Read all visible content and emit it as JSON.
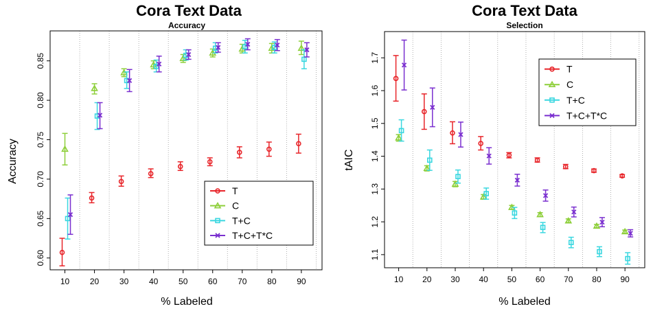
{
  "chart_data": [
    {
      "type": "scatter",
      "title": "Cora Text Data",
      "subtitle": "Accuracy",
      "xlabel": "% Labeled",
      "ylabel": "Accuracy",
      "x_categories": [
        "10",
        "20",
        "30",
        "40",
        "50",
        "60",
        "70",
        "80",
        "90"
      ],
      "xlim": [
        5,
        97
      ],
      "ylim": [
        0.585,
        0.888
      ],
      "y_ticks": [
        "0.60",
        "0.65",
        "0.70",
        "0.75",
        "0.80",
        "0.85"
      ],
      "grid": "vertical dotted",
      "legend_position": "bottom-right",
      "series": [
        {
          "name": "T",
          "color": "#e8252a",
          "marker": "circle",
          "x": [
            10,
            20,
            30,
            40,
            50,
            60,
            70,
            80,
            90
          ],
          "y": [
            0.607,
            0.676,
            0.697,
            0.707,
            0.716,
            0.722,
            0.734,
            0.738,
            0.745
          ],
          "y_low": [
            0.59,
            0.67,
            0.691,
            0.702,
            0.711,
            0.717,
            0.727,
            0.729,
            0.733
          ],
          "y_high": [
            0.625,
            0.683,
            0.704,
            0.713,
            0.722,
            0.727,
            0.741,
            0.747,
            0.757
          ]
        },
        {
          "name": "C",
          "color": "#8ecf3a",
          "marker": "triangle",
          "x": [
            10,
            20,
            30,
            40,
            50,
            60,
            70,
            80,
            90
          ],
          "y": [
            0.738,
            0.815,
            0.835,
            0.845,
            0.853,
            0.86,
            0.865,
            0.866,
            0.866
          ],
          "y_low": [
            0.718,
            0.808,
            0.83,
            0.84,
            0.848,
            0.855,
            0.86,
            0.86,
            0.858
          ],
          "y_high": [
            0.758,
            0.821,
            0.84,
            0.85,
            0.858,
            0.865,
            0.871,
            0.872,
            0.875
          ]
        },
        {
          "name": "T+C",
          "color": "#3ad7e0",
          "marker": "square",
          "x": [
            10,
            20,
            30,
            40,
            50,
            60,
            70,
            80,
            90
          ],
          "y": [
            0.65,
            0.78,
            0.825,
            0.843,
            0.857,
            0.866,
            0.868,
            0.867,
            0.852
          ],
          "y_low": [
            0.624,
            0.763,
            0.815,
            0.836,
            0.851,
            0.86,
            0.86,
            0.86,
            0.84
          ],
          "y_high": [
            0.676,
            0.797,
            0.836,
            0.851,
            0.864,
            0.873,
            0.876,
            0.874,
            0.864
          ]
        },
        {
          "name": "T+C+T*C",
          "color": "#7a2fcf",
          "marker": "x",
          "x": [
            10,
            20,
            30,
            40,
            50,
            60,
            70,
            80,
            90
          ],
          "y": [
            0.655,
            0.781,
            0.825,
            0.846,
            0.858,
            0.867,
            0.871,
            0.87,
            0.864
          ],
          "y_low": [
            0.63,
            0.764,
            0.811,
            0.836,
            0.852,
            0.861,
            0.864,
            0.863,
            0.855
          ],
          "y_high": [
            0.68,
            0.797,
            0.839,
            0.856,
            0.864,
            0.873,
            0.878,
            0.877,
            0.873
          ]
        }
      ]
    },
    {
      "type": "scatter",
      "title": "Cora Text Data",
      "subtitle": "Selection",
      "xlabel": "% Labeled",
      "ylabel": "tAIC",
      "x_categories": [
        "10",
        "20",
        "30",
        "40",
        "50",
        "60",
        "70",
        "80",
        "90"
      ],
      "xlim": [
        5,
        97
      ],
      "ylim": [
        1.06,
        1.78
      ],
      "y_ticks": [
        "1.1",
        "1.2",
        "1.3",
        "1.4",
        "1.5",
        "1.6",
        "1.7"
      ],
      "grid": "vertical dotted",
      "legend_position": "top-right",
      "series": [
        {
          "name": "T",
          "color": "#e8252a",
          "marker": "circle",
          "x": [
            10,
            20,
            30,
            40,
            50,
            60,
            70,
            80,
            90
          ],
          "y": [
            1.637,
            1.536,
            1.471,
            1.439,
            1.403,
            1.388,
            1.368,
            1.356,
            1.34
          ],
          "y_low": [
            1.568,
            1.482,
            1.438,
            1.419,
            1.395,
            1.382,
            1.362,
            1.351,
            1.336
          ],
          "y_high": [
            1.707,
            1.59,
            1.505,
            1.46,
            1.411,
            1.395,
            1.375,
            1.361,
            1.344
          ]
        },
        {
          "name": "C",
          "color": "#8ecf3a",
          "marker": "triangle",
          "x": [
            10,
            20,
            30,
            40,
            50,
            60,
            70,
            80,
            90
          ],
          "y": [
            1.456,
            1.363,
            1.315,
            1.276,
            1.244,
            1.222,
            1.203,
            1.187,
            1.17
          ],
          "y_low": [
            1.446,
            1.355,
            1.307,
            1.269,
            1.238,
            1.216,
            1.198,
            1.182,
            1.165
          ],
          "y_high": [
            1.466,
            1.371,
            1.323,
            1.283,
            1.25,
            1.228,
            1.209,
            1.192,
            1.175
          ]
        },
        {
          "name": "T+C",
          "color": "#3ad7e0",
          "marker": "square",
          "x": [
            10,
            20,
            30,
            40,
            50,
            60,
            70,
            80,
            90
          ],
          "y": [
            1.478,
            1.388,
            1.338,
            1.286,
            1.227,
            1.183,
            1.137,
            1.109,
            1.088
          ],
          "y_low": [
            1.446,
            1.357,
            1.318,
            1.269,
            1.21,
            1.167,
            1.121,
            1.094,
            1.071
          ],
          "y_high": [
            1.511,
            1.419,
            1.358,
            1.303,
            1.244,
            1.198,
            1.153,
            1.124,
            1.106
          ]
        },
        {
          "name": "T+C+T*C",
          "color": "#7a2fcf",
          "marker": "x",
          "x": [
            10,
            20,
            30,
            40,
            50,
            60,
            70,
            80,
            90
          ],
          "y": [
            1.678,
            1.549,
            1.466,
            1.401,
            1.327,
            1.28,
            1.23,
            1.199,
            1.165
          ],
          "y_low": [
            1.602,
            1.49,
            1.428,
            1.376,
            1.309,
            1.263,
            1.215,
            1.185,
            1.154
          ],
          "y_high": [
            1.754,
            1.608,
            1.504,
            1.426,
            1.345,
            1.297,
            1.245,
            1.213,
            1.176
          ]
        }
      ]
    }
  ]
}
